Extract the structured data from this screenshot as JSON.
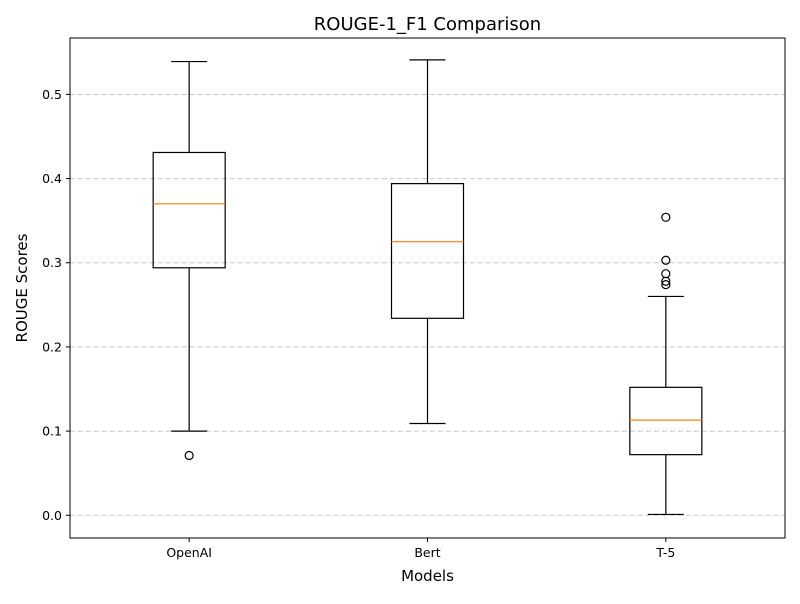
{
  "chart_data": {
    "type": "box",
    "title": "ROUGE-1_F1 Comparison",
    "xlabel": "Models",
    "ylabel": "ROUGE Scores",
    "ylim": [
      -0.027,
      0.567
    ],
    "yticks": [
      0.0,
      0.1,
      0.2,
      0.3,
      0.4,
      0.5
    ],
    "ytick_labels": [
      "0.0",
      "0.1",
      "0.2",
      "0.3",
      "0.4",
      "0.5"
    ],
    "grid": "y-dashed",
    "categories": [
      "OpenAI",
      "Bert",
      "T-5"
    ],
    "boxes": [
      {
        "name": "OpenAI",
        "whisker_low": 0.1,
        "q1": 0.294,
        "median": 0.37,
        "q3": 0.431,
        "whisker_high": 0.539,
        "outliers": [
          0.071
        ]
      },
      {
        "name": "Bert",
        "whisker_low": 0.109,
        "q1": 0.234,
        "median": 0.325,
        "q3": 0.394,
        "whisker_high": 0.541,
        "outliers": []
      },
      {
        "name": "T-5",
        "whisker_low": 0.001,
        "q1": 0.072,
        "median": 0.113,
        "q3": 0.152,
        "whisker_high": 0.26,
        "outliers": [
          0.354,
          0.303,
          0.287,
          0.278,
          0.274
        ]
      }
    ],
    "colors": {
      "box": "#000000",
      "median": "#ff7f0e",
      "grid": "#c8c8c8"
    }
  }
}
